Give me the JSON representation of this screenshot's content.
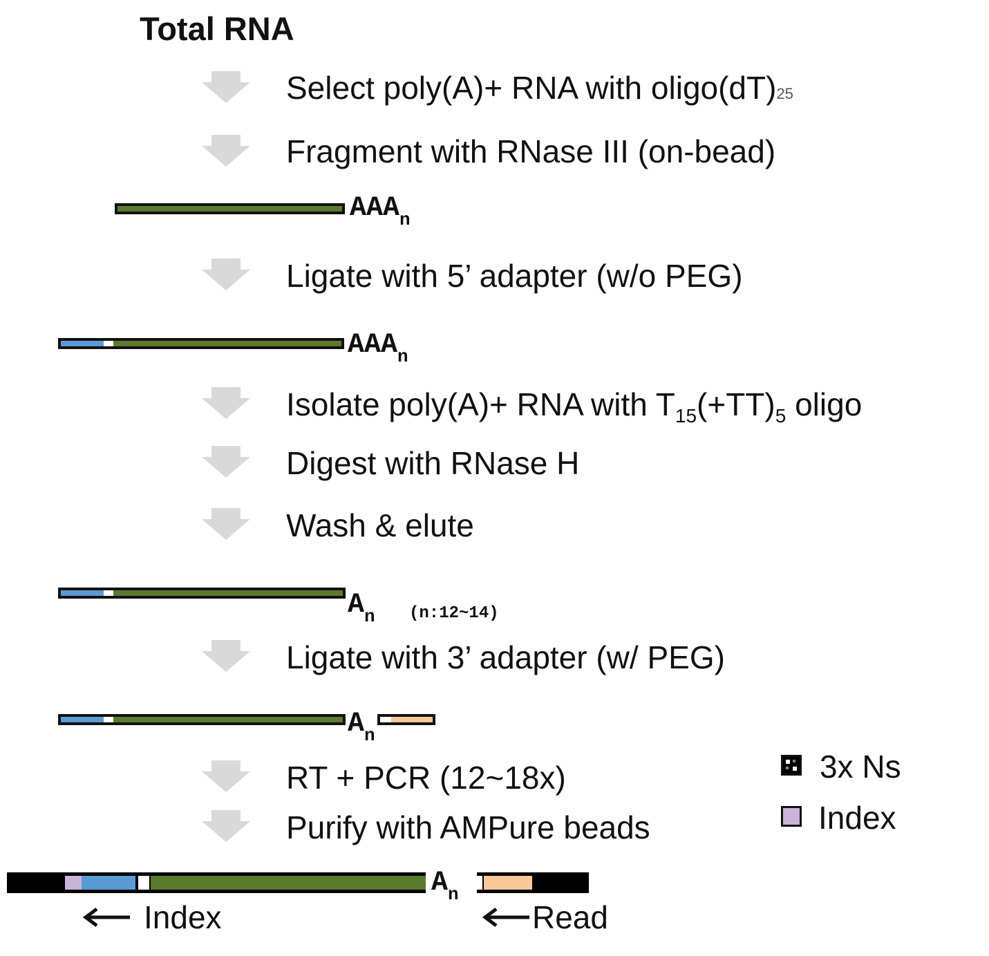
{
  "title": "Total RNA",
  "steps": {
    "s1_main": "Select  poly(A)+ RNA with oligo(dT)",
    "s1_sub": "25",
    "s2": "Fragment with RNase III (on-bead)",
    "s3": "Ligate with 5’ adapter (w/o PEG)",
    "s4_a": "Isolate poly(A)+ RNA with T",
    "s4_sub1": "15",
    "s4_b": "(+TT)",
    "s4_sub2": "5",
    "s4_c": " oligo",
    "s5": "Digest with RNase H",
    "s6": "Wash & elute",
    "s7": "Ligate with 3’ adapter (w/ PEG)",
    "s8": "RT + PCR (12~18x)",
    "s9": "Purify with AMPure beads"
  },
  "labels": {
    "aaa": "AAA",
    "a": "A",
    "n": "n",
    "n_range": "(n:12~14)"
  },
  "legend": {
    "ns": "3x Ns",
    "index": "Index"
  },
  "pointers": {
    "index": "Index",
    "read": "Read"
  },
  "colors": {
    "rna": "#5b7a2e",
    "adapter5": "#5b9bd5",
    "adapter3": "#f9c79a",
    "index": "#c9b3d8",
    "flank": "#000000",
    "arrow": "#d9d9d9"
  }
}
